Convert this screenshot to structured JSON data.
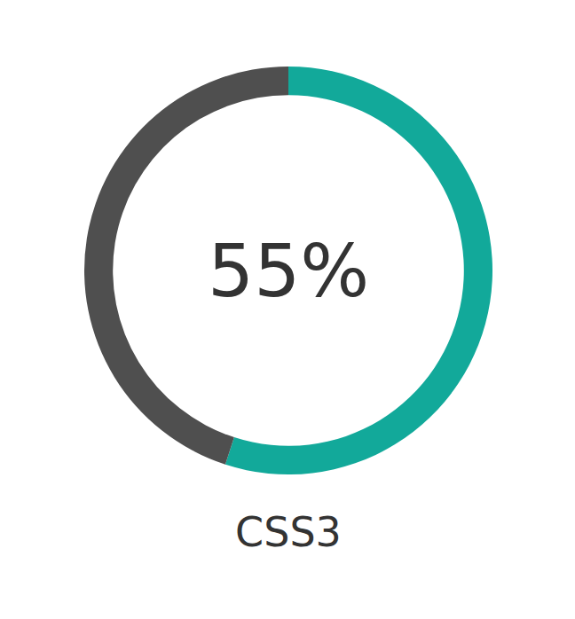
{
  "chart_data": {
    "type": "donut",
    "title": "CSS3",
    "values": [
      55,
      45
    ],
    "value_labels": [
      "55%",
      null
    ],
    "colors": [
      "#12a99a",
      "#4f4f4f"
    ]
  }
}
